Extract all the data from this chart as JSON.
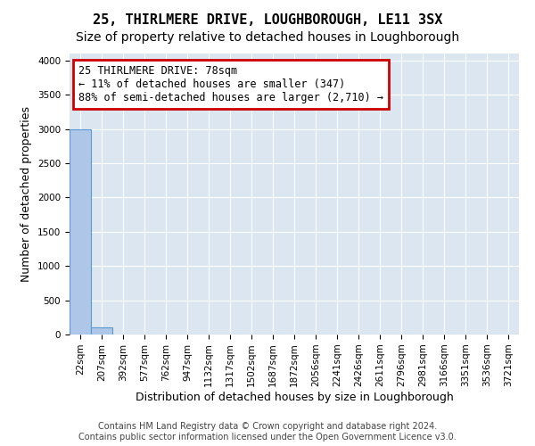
{
  "title": "25, THIRLMERE DRIVE, LOUGHBOROUGH, LE11 3SX",
  "subtitle": "Size of property relative to detached houses in Loughborough",
  "xlabel": "Distribution of detached houses by size in Loughborough",
  "ylabel": "Number of detached properties",
  "bin_labels": [
    "22sqm",
    "207sqm",
    "392sqm",
    "577sqm",
    "762sqm",
    "947sqm",
    "1132sqm",
    "1317sqm",
    "1502sqm",
    "1687sqm",
    "1872sqm",
    "2056sqm",
    "2241sqm",
    "2426sqm",
    "2611sqm",
    "2796sqm",
    "2981sqm",
    "3166sqm",
    "3351sqm",
    "3536sqm",
    "3721sqm"
  ],
  "bar_values": [
    3000,
    100,
    0,
    0,
    0,
    0,
    0,
    0,
    0,
    0,
    0,
    0,
    0,
    0,
    0,
    0,
    0,
    0,
    0,
    0,
    0
  ],
  "bar_color": "#aec6e8",
  "bar_edge_color": "#5b9bd5",
  "ylim": [
    0,
    4100
  ],
  "yticks": [
    0,
    500,
    1000,
    1500,
    2000,
    2500,
    3000,
    3500,
    4000
  ],
  "annotation_text": "25 THIRLMERE DRIVE: 78sqm\n← 11% of detached houses are smaller (347)\n88% of semi-detached houses are larger (2,710) →",
  "annotation_box_color": "#cc0000",
  "bg_color": "#dce6f1",
  "grid_color": "#ffffff",
  "footer_line1": "Contains HM Land Registry data © Crown copyright and database right 2024.",
  "footer_line2": "Contains public sector information licensed under the Open Government Licence v3.0.",
  "title_fontsize": 11,
  "subtitle_fontsize": 10,
  "annotation_fontsize": 8.5,
  "axis_label_fontsize": 9,
  "tick_fontsize": 7.5,
  "footer_fontsize": 7
}
